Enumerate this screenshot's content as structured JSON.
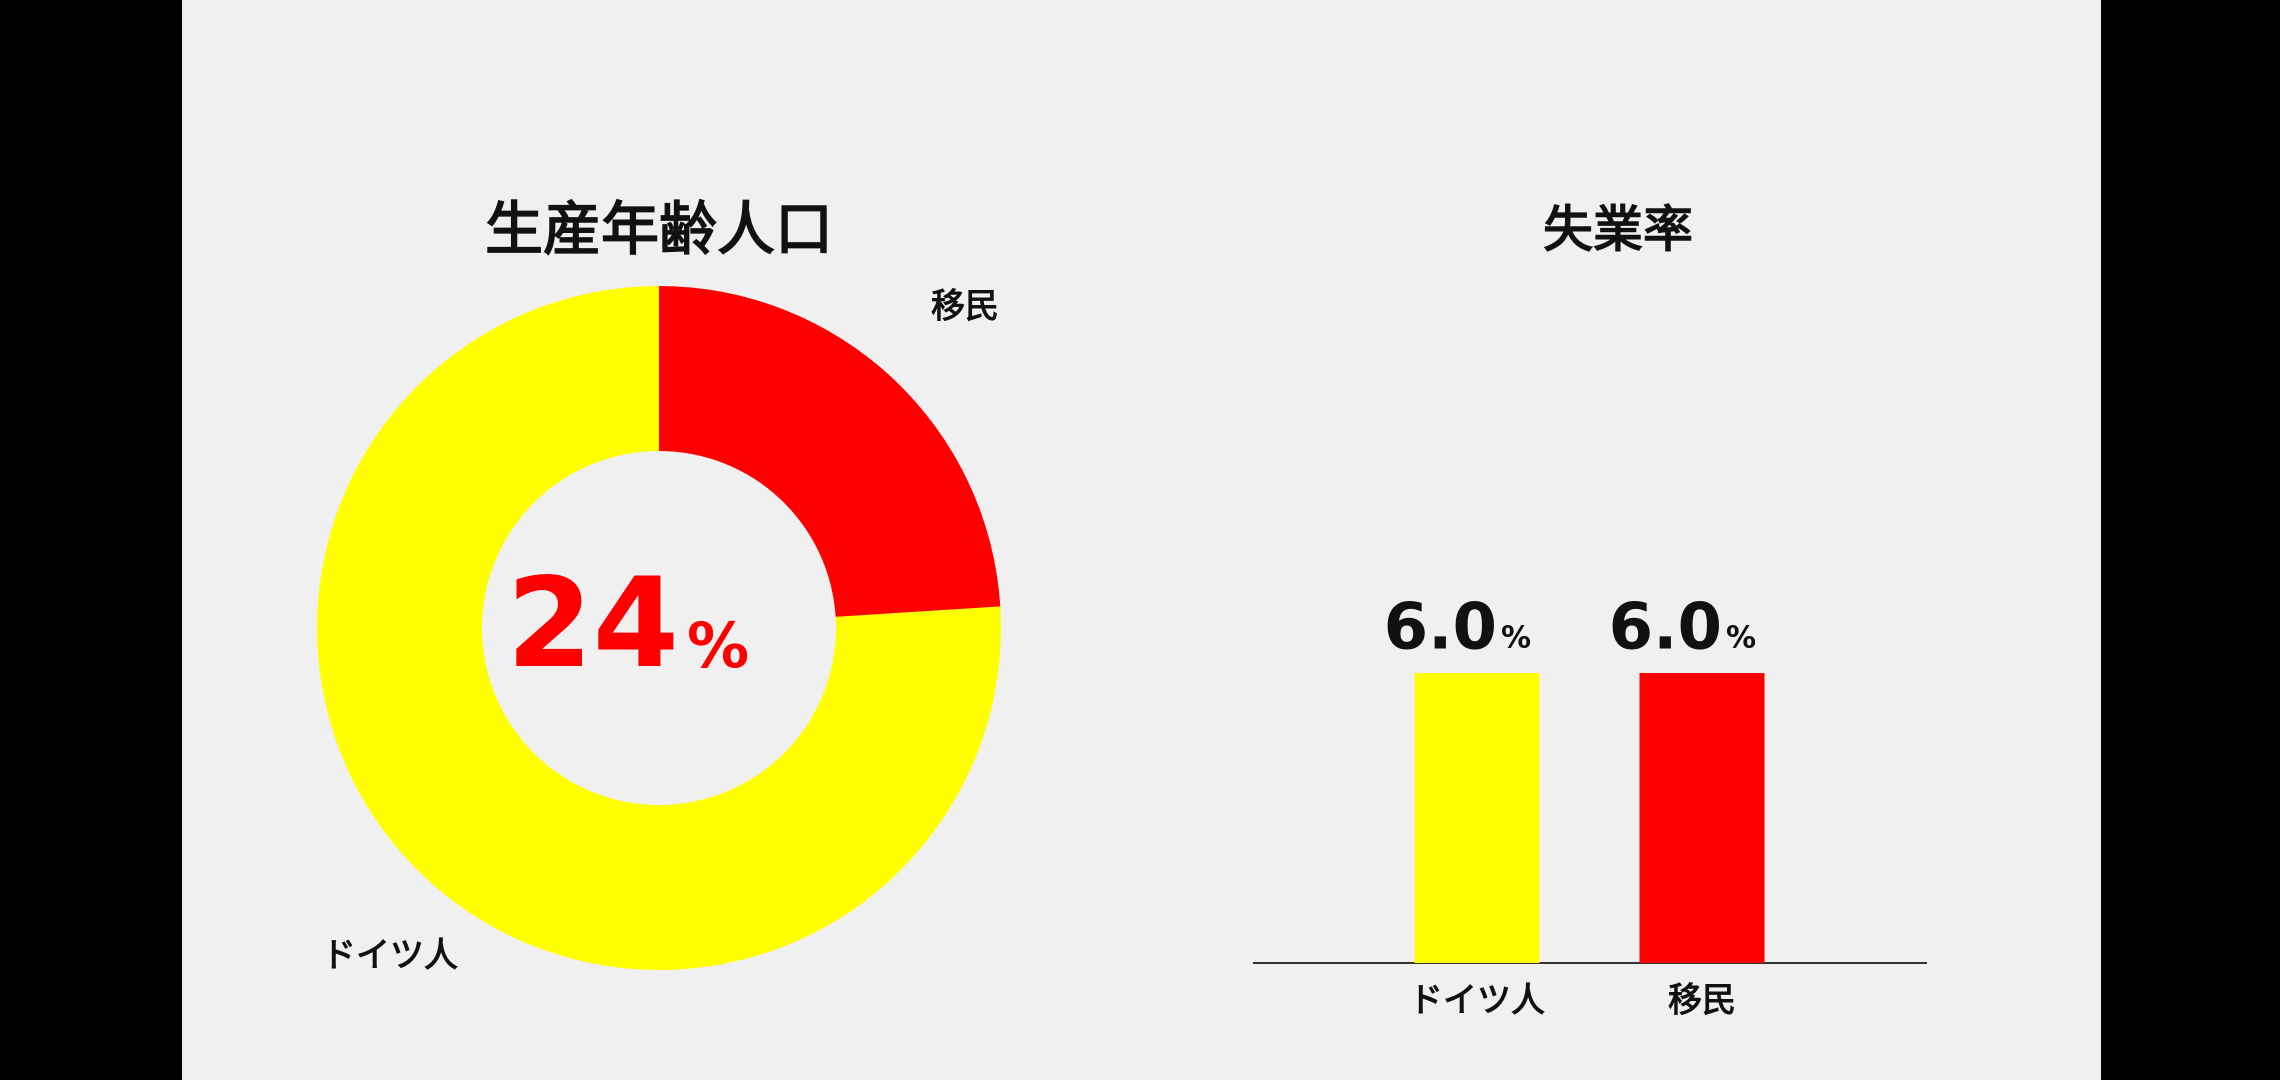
{
  "chart_data": [
    {
      "type": "donut",
      "title": "生産年齢人口",
      "categories": [
        "移民",
        "ドイツ人"
      ],
      "values": [
        24,
        76
      ],
      "colors": [
        "#ff0000",
        "#ffff00"
      ],
      "center_label": "24",
      "unit": "%"
    },
    {
      "type": "bar",
      "title": "失業率",
      "categories": [
        "ドイツ人",
        "移民"
      ],
      "values": [
        6.0,
        6.0
      ],
      "value_labels": [
        "6.0",
        "6.0"
      ],
      "colors": [
        "#ffff00",
        "#ff0000"
      ],
      "unit": "%"
    }
  ]
}
